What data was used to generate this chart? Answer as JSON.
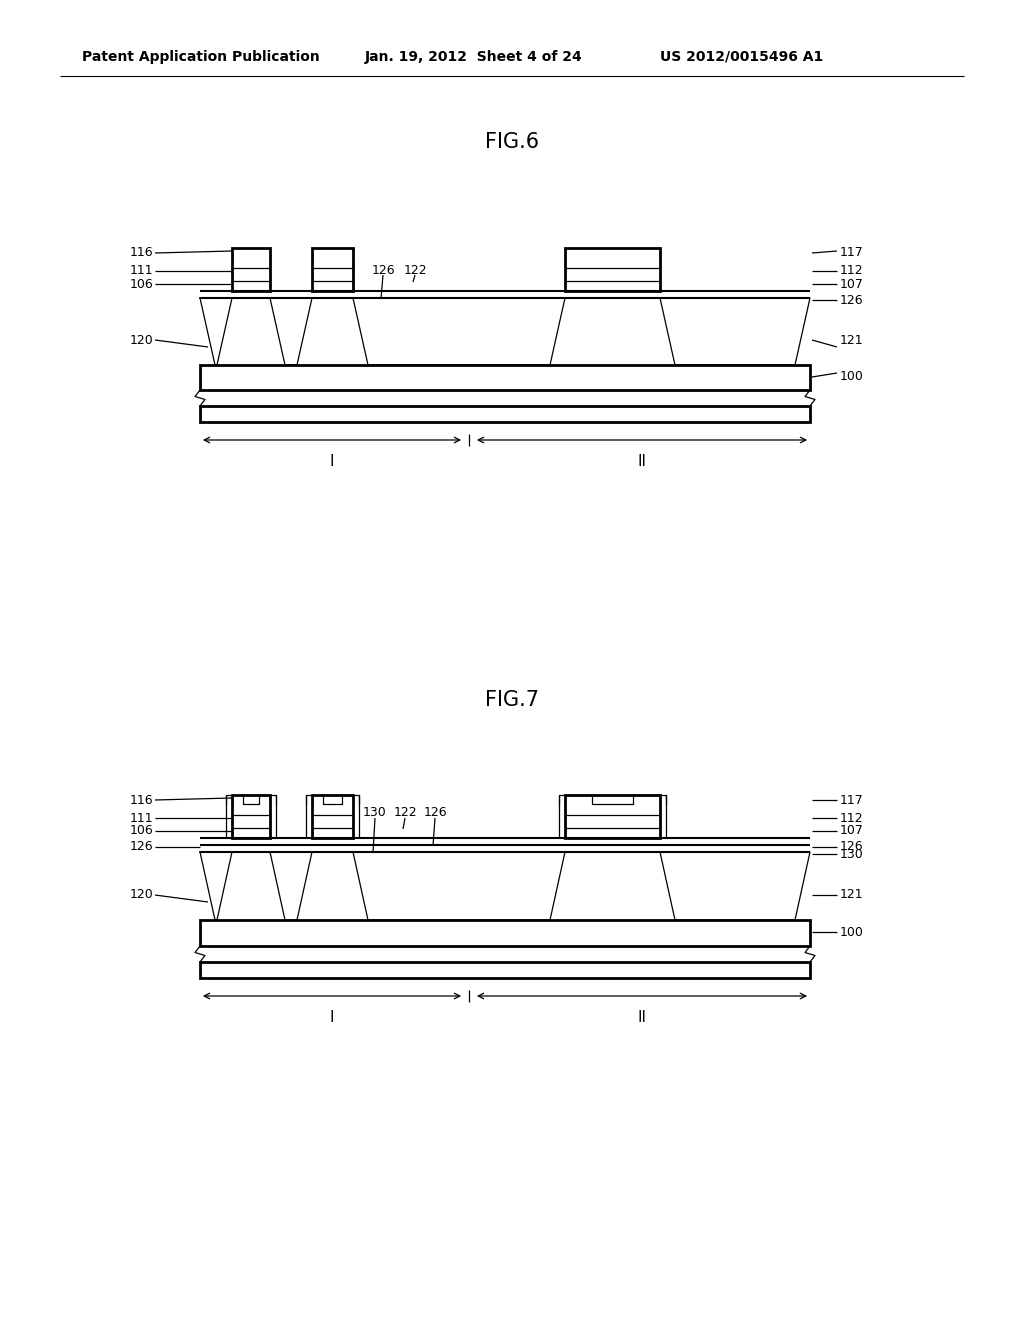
{
  "background_color": "#ffffff",
  "header_text": "Patent Application Publication",
  "header_date": "Jan. 19, 2012  Sheet 4 of 24",
  "header_patent": "US 2012/0015496 A1",
  "fig6_title": "FIG.6",
  "fig7_title": "FIG.7",
  "lw": 1.5,
  "lw_thick": 2.0,
  "lw_thin": 0.9,
  "fs_label": 9,
  "fs_title": 15,
  "fs_header": 10,
  "fs_roman": 11
}
